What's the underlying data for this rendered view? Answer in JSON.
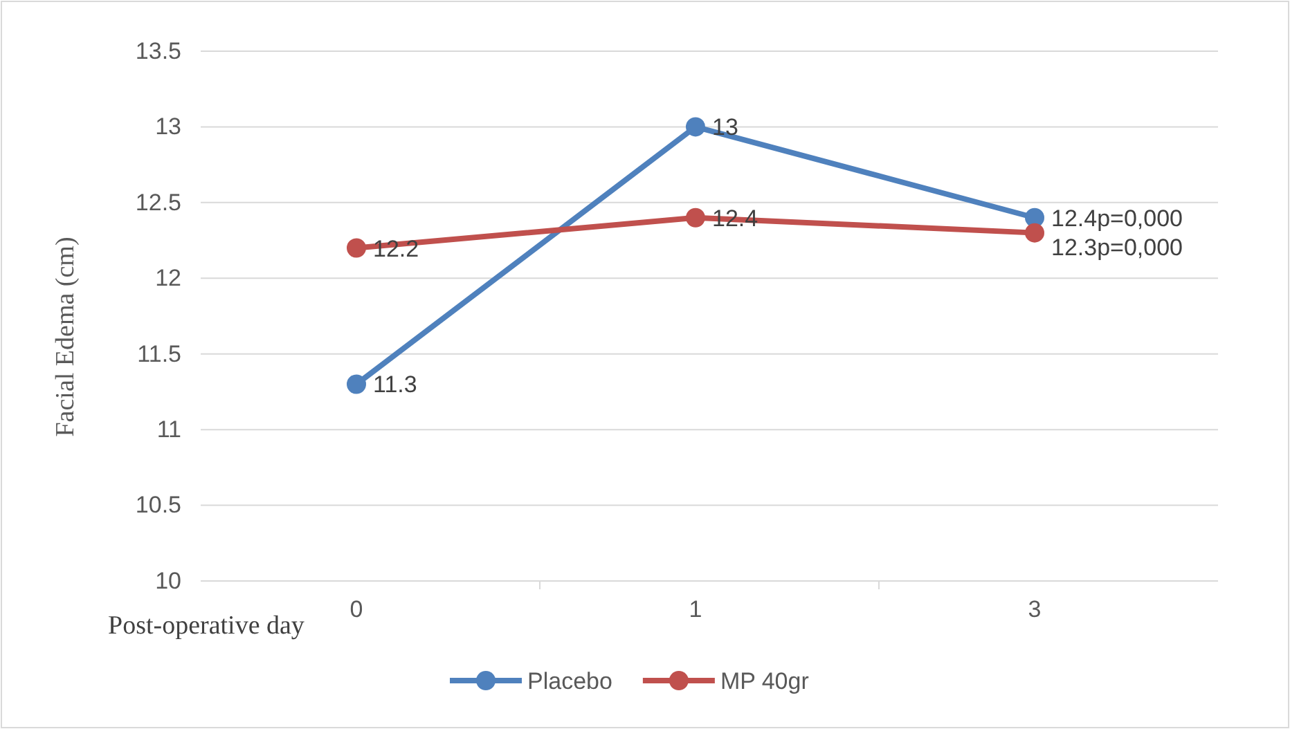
{
  "chart_data": {
    "type": "line",
    "xlabel": "Post-operative day",
    "ylabel": "Facial Edema (cm)",
    "categories": [
      "0",
      "1",
      "3"
    ],
    "series": [
      {
        "name": "Placebo",
        "color": "#4f81bd",
        "values": [
          11.3,
          13,
          12.4
        ],
        "value_labels": [
          "11.3",
          "13",
          "12.4p=0,000"
        ]
      },
      {
        "name": "MP 40gr",
        "color": "#c0504d",
        "values": [
          12.2,
          12.4,
          12.3
        ],
        "value_labels": [
          "12.2",
          "12.4",
          "12.3p=0,000"
        ]
      }
    ],
    "ylim": [
      10,
      13.5
    ],
    "yticks": [
      10,
      10.5,
      11,
      11.5,
      12,
      12.5,
      13,
      13.5
    ],
    "grid": "y",
    "legend": "bottom",
    "marker": "circle",
    "line_style": "solid"
  }
}
